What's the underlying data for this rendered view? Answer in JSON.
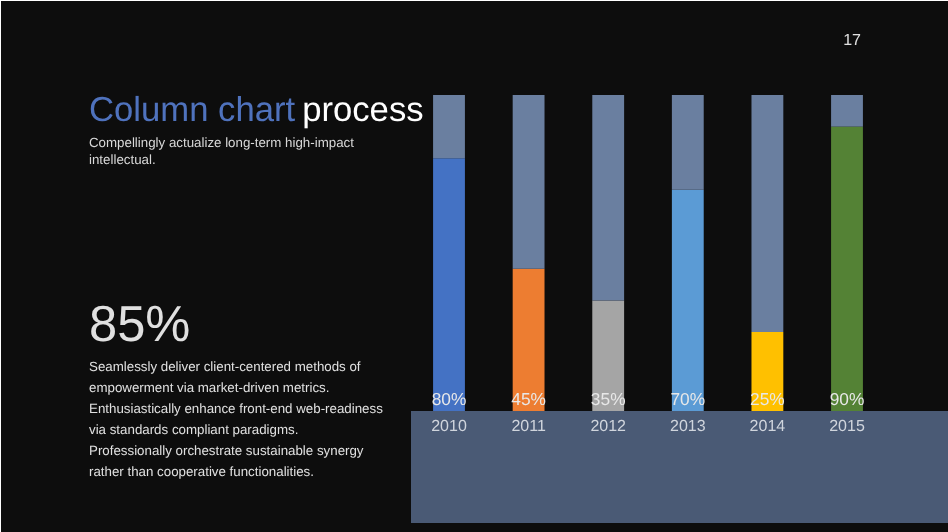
{
  "chart_data": {
    "type": "bar",
    "title": "Column chart process",
    "subtitle": "Compellingly actualize long-term high-impact intellectual.",
    "categories": [
      "2010",
      "2011",
      "2012",
      "2013",
      "2014",
      "2015"
    ],
    "ylim": [
      0,
      100
    ],
    "stacked": true,
    "series": [
      {
        "colors": [
          "#4472c4",
          "#ed7d31",
          "#a5a5a5",
          "#5b9bd5",
          "#ffc000",
          "#548235"
        ],
        "values": [
          80,
          45,
          35,
          70,
          25,
          90
        ],
        "value_labels": [
          "80%",
          "45%",
          "35%",
          "70%",
          "25%",
          "90%"
        ]
      },
      {
        "color": "#6a7fa0",
        "values": [
          20,
          55,
          65,
          30,
          75,
          10
        ]
      }
    ],
    "annotations": [
      "17",
      "85%",
      "Seamlessly deliver client-centered methods of empowerment via market-driven metrics. Enthusiastically enhance front-end web-readiness via standards compliant paradigms. Professionally orchestrate sustainable synergy rather than cooperative functionalities."
    ]
  }
}
